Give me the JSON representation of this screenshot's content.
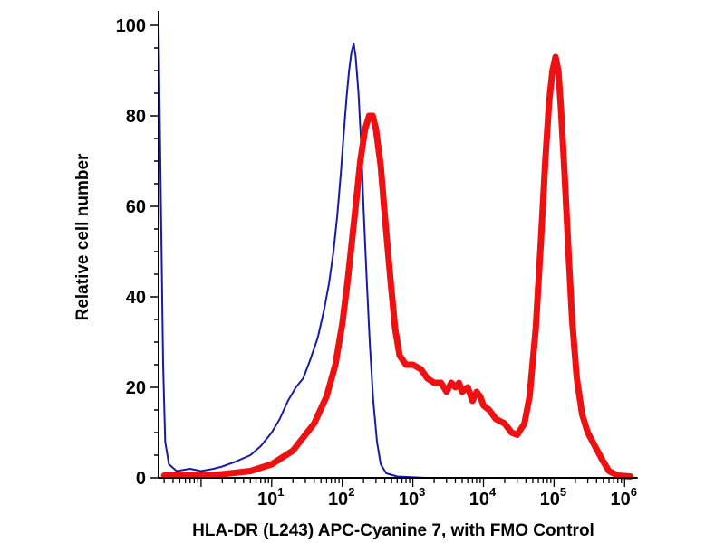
{
  "chart_data": {
    "type": "line",
    "xscale": "log",
    "xlabel": "HLA-DR (L243) APC-Cyanine 7, with FMO Control",
    "ylabel": "Relative cell number",
    "xlim": [
      0.25,
      1500000
    ],
    "ylim": [
      0,
      102
    ],
    "xticks": [
      {
        "base": "10",
        "exp": "1",
        "value": 10
      },
      {
        "base": "10",
        "exp": "2",
        "value": 100
      },
      {
        "base": "10",
        "exp": "3",
        "value": 1000
      },
      {
        "base": "10",
        "exp": "4",
        "value": 10000
      },
      {
        "base": "10",
        "exp": "5",
        "value": 100000
      },
      {
        "base": "10",
        "exp": "6",
        "value": 1000000
      }
    ],
    "yticks": [
      "0",
      "20",
      "40",
      "60",
      "80",
      "100"
    ],
    "series": [
      {
        "color": "#1a1aa8",
        "points": [
          [
            0.25,
            100
          ],
          [
            0.27,
            60
          ],
          [
            0.29,
            25
          ],
          [
            0.31,
            8
          ],
          [
            0.35,
            3
          ],
          [
            0.45,
            1.5
          ],
          [
            0.7,
            2
          ],
          [
            1,
            1.5
          ],
          [
            1.5,
            2
          ],
          [
            2,
            2.5
          ],
          [
            3,
            3.5
          ],
          [
            5,
            5
          ],
          [
            7,
            7
          ],
          [
            10,
            10
          ],
          [
            13,
            13
          ],
          [
            17,
            17
          ],
          [
            22,
            20
          ],
          [
            28,
            22
          ],
          [
            35,
            26
          ],
          [
            45,
            31
          ],
          [
            55,
            37
          ],
          [
            65,
            43
          ],
          [
            75,
            50
          ],
          [
            85,
            58
          ],
          [
            95,
            67
          ],
          [
            105,
            76
          ],
          [
            115,
            84
          ],
          [
            125,
            90
          ],
          [
            135,
            94
          ],
          [
            145,
            96
          ],
          [
            155,
            93
          ],
          [
            170,
            85
          ],
          [
            185,
            74
          ],
          [
            200,
            60
          ],
          [
            220,
            45
          ],
          [
            245,
            30
          ],
          [
            275,
            17
          ],
          [
            310,
            8
          ],
          [
            350,
            3
          ],
          [
            420,
            1
          ],
          [
            600,
            0.3
          ],
          [
            1500,
            0
          ],
          [
            1500000,
            0
          ]
        ]
      },
      {
        "color": "#ee1111",
        "points": [
          [
            0.3,
            0.5
          ],
          [
            0.5,
            0.5
          ],
          [
            1,
            0.5
          ],
          [
            2,
            0.8
          ],
          [
            5,
            1.5
          ],
          [
            10,
            3
          ],
          [
            20,
            6
          ],
          [
            40,
            12
          ],
          [
            60,
            18
          ],
          [
            80,
            25
          ],
          [
            100,
            34
          ],
          [
            120,
            44
          ],
          [
            150,
            58
          ],
          [
            180,
            70
          ],
          [
            210,
            77
          ],
          [
            240,
            80
          ],
          [
            270,
            80
          ],
          [
            300,
            77
          ],
          [
            350,
            69
          ],
          [
            400,
            58
          ],
          [
            480,
            44
          ],
          [
            560,
            33
          ],
          [
            650,
            27
          ],
          [
            800,
            25
          ],
          [
            1000,
            25
          ],
          [
            1300,
            24
          ],
          [
            1600,
            22
          ],
          [
            2000,
            21
          ],
          [
            2500,
            21
          ],
          [
            3000,
            19
          ],
          [
            3500,
            21
          ],
          [
            4000,
            20
          ],
          [
            4500,
            21
          ],
          [
            5000,
            19
          ],
          [
            6000,
            20
          ],
          [
            7000,
            17
          ],
          [
            8000,
            19
          ],
          [
            9000,
            18
          ],
          [
            10000,
            16
          ],
          [
            12000,
            15
          ],
          [
            15000,
            13
          ],
          [
            20000,
            12
          ],
          [
            25000,
            10
          ],
          [
            30000,
            9.5
          ],
          [
            38000,
            12
          ],
          [
            45000,
            18
          ],
          [
            55000,
            33
          ],
          [
            65000,
            52
          ],
          [
            75000,
            70
          ],
          [
            85000,
            83
          ],
          [
            95000,
            90
          ],
          [
            105000,
            93
          ],
          [
            115000,
            90
          ],
          [
            125000,
            82
          ],
          [
            140000,
            68
          ],
          [
            160000,
            50
          ],
          [
            180000,
            35
          ],
          [
            210000,
            22
          ],
          [
            250000,
            14
          ],
          [
            300000,
            10
          ],
          [
            380000,
            7
          ],
          [
            480000,
            4
          ],
          [
            600000,
            1.5
          ],
          [
            800000,
            0.5
          ],
          [
            1200000,
            0.3
          ]
        ]
      }
    ]
  }
}
